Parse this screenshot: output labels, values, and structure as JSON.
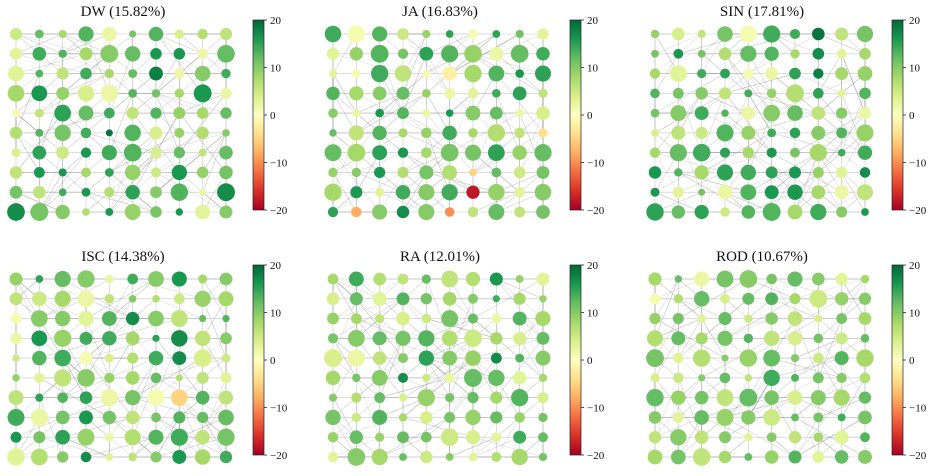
{
  "figure": {
    "colormap": "RdYlGn",
    "colormap_stops": [
      "#a50026",
      "#d73027",
      "#f46d43",
      "#fdae61",
      "#fee08b",
      "#ffffbf",
      "#d9ef8b",
      "#a6d96a",
      "#66bd63",
      "#1a9850",
      "#006837"
    ],
    "edge_color": "#888888",
    "grid": "10x10 nodes"
  },
  "chart_data": [
    {
      "type": "scatter",
      "title": "DW (15.82%)",
      "colorbar": {
        "range": [
          -20,
          20
        ],
        "ticks": [
          "20",
          "10",
          "0",
          "−10",
          "−20"
        ]
      },
      "node_values": [
        [
          5,
          12,
          8,
          13,
          2,
          11,
          13,
          4,
          7,
          6
        ],
        [
          3,
          14,
          13,
          8,
          10,
          12,
          16,
          16,
          2,
          12
        ],
        [
          3,
          13,
          6,
          14,
          8,
          12,
          18,
          2,
          10,
          14
        ],
        [
          8,
          16,
          9,
          4,
          2,
          13,
          11,
          8,
          16,
          2
        ],
        [
          1,
          6,
          15,
          12,
          14,
          6,
          13,
          9,
          8,
          12
        ],
        [
          7,
          13,
          11,
          14,
          19,
          13,
          4,
          9,
          7,
          10
        ],
        [
          4,
          15,
          5,
          16,
          14,
          13,
          4,
          12,
          6,
          12
        ],
        [
          6,
          16,
          16,
          8,
          15,
          9,
          5,
          16,
          9,
          11
        ],
        [
          11,
          6,
          14,
          16,
          7,
          15,
          10,
          13,
          2,
          17
        ],
        [
          17,
          11,
          10,
          7,
          16,
          9,
          11,
          16,
          3,
          10
        ]
      ]
    },
    {
      "type": "scatter",
      "title": "JA (16.83%)",
      "colorbar": {
        "range": [
          -20,
          20
        ],
        "ticks": [
          "20",
          "10",
          "0",
          "−10",
          "−20"
        ]
      },
      "node_values": [
        [
          14,
          1,
          13,
          5,
          9,
          15,
          1,
          15,
          11,
          3
        ],
        [
          3,
          9,
          13,
          11,
          15,
          13,
          9,
          2,
          12,
          14
        ],
        [
          3,
          1,
          14,
          6,
          1,
          -2,
          8,
          13,
          16,
          15
        ],
        [
          13,
          8,
          10,
          12,
          9,
          2,
          3,
          14,
          15,
          6
        ],
        [
          10,
          2,
          16,
          13,
          2,
          16,
          10,
          12,
          2,
          4
        ],
        [
          12,
          6,
          13,
          8,
          9,
          14,
          8,
          7,
          6,
          -4
        ],
        [
          12,
          8,
          15,
          16,
          8,
          11,
          11,
          15,
          9,
          12
        ],
        [
          9,
          10,
          16,
          7,
          11,
          7,
          -5,
          12,
          5,
          11
        ],
        [
          8,
          16,
          3,
          14,
          10,
          14,
          -18,
          9,
          3,
          10
        ],
        [
          15,
          -8,
          10,
          17,
          10,
          -10,
          6,
          12,
          6,
          11
        ]
      ]
    },
    {
      "type": "scatter",
      "title": "SIN (17.81%)",
      "colorbar": {
        "range": [
          -20,
          20
        ],
        "ticks": [
          "20",
          "10",
          "0",
          "−10",
          "−20"
        ]
      },
      "node_values": [
        [
          9,
          4,
          6,
          11,
          1,
          14,
          14,
          19,
          6,
          11
        ],
        [
          11,
          16,
          11,
          7,
          12,
          13,
          8,
          17,
          3,
          8
        ],
        [
          8,
          3,
          14,
          15,
          1,
          2,
          15,
          18,
          8,
          9
        ],
        [
          13,
          11,
          10,
          6,
          14,
          9,
          7,
          15,
          3,
          13
        ],
        [
          11,
          10,
          14,
          13,
          2,
          10,
          12,
          6,
          10,
          2
        ],
        [
          4,
          6,
          5,
          13,
          9,
          14,
          15,
          10,
          13,
          9
        ],
        [
          8,
          12,
          14,
          15,
          8,
          16,
          11,
          8,
          14,
          14
        ],
        [
          16,
          13,
          8,
          15,
          14,
          15,
          16,
          9,
          3,
          17
        ],
        [
          16,
          3,
          11,
          2,
          13,
          16,
          16,
          8,
          2,
          6
        ],
        [
          15,
          12,
          15,
          5,
          13,
          13,
          8,
          14,
          10,
          16
        ]
      ]
    },
    {
      "type": "scatter",
      "title": "ISC (14.38%)",
      "colorbar": {
        "range": [
          -20,
          20
        ],
        "ticks": [
          "20",
          "10",
          "0",
          "−10",
          "−20"
        ]
      },
      "node_values": [
        [
          9,
          15,
          12,
          10,
          2,
          14,
          10,
          16,
          8,
          10
        ],
        [
          6,
          5,
          8,
          2,
          6,
          10,
          7,
          5,
          9,
          8
        ],
        [
          1,
          10,
          10,
          3,
          13,
          17,
          10,
          6,
          12,
          13
        ],
        [
          2,
          16,
          9,
          14,
          14,
          8,
          15,
          17,
          6,
          10
        ],
        [
          5,
          13,
          14,
          1,
          4,
          7,
          14,
          17,
          4,
          5
        ],
        [
          9,
          3,
          6,
          10,
          9,
          8,
          12,
          7,
          6,
          3
        ],
        [
          6,
          15,
          13,
          15,
          2,
          11,
          1,
          -5,
          13,
          6
        ],
        [
          14,
          2,
          11,
          16,
          11,
          6,
          11,
          13,
          12,
          12
        ],
        [
          16,
          11,
          15,
          9,
          2,
          7,
          13,
          14,
          6,
          11
        ],
        [
          3,
          7,
          10,
          17,
          3,
          6,
          10,
          16,
          8,
          14
        ]
      ]
    },
    {
      "type": "scatter",
      "title": "RA (12.01%)",
      "colorbar": {
        "range": [
          -20,
          20
        ],
        "ticks": [
          "20",
          "10",
          "0",
          "−10",
          "−20"
        ]
      },
      "node_values": [
        [
          8,
          14,
          7,
          6,
          12,
          6,
          7,
          16,
          9,
          3
        ],
        [
          4,
          12,
          3,
          13,
          11,
          8,
          10,
          14,
          8,
          9
        ],
        [
          9,
          8,
          6,
          4,
          5,
          11,
          12,
          2,
          13,
          8
        ],
        [
          11,
          10,
          12,
          11,
          13,
          7,
          5,
          8,
          4,
          12
        ],
        [
          4,
          2,
          6,
          10,
          15,
          10,
          9,
          17,
          13,
          10
        ],
        [
          8,
          11,
          10,
          17,
          5,
          2,
          12,
          12,
          3,
          8
        ],
        [
          10,
          7,
          12,
          4,
          9,
          11,
          12,
          8,
          13,
          4
        ],
        [
          11,
          5,
          13,
          8,
          4,
          11,
          9,
          12,
          9,
          11
        ],
        [
          9,
          12,
          9,
          12,
          11,
          5,
          4,
          3,
          14,
          12
        ],
        [
          3,
          10,
          8,
          12,
          5,
          10,
          3,
          7,
          8,
          11
        ]
      ]
    },
    {
      "type": "scatter",
      "title": "ROD (10.67%)",
      "colorbar": {
        "range": [
          -20,
          20
        ],
        "ticks": [
          "20",
          "10",
          "0",
          "−10",
          "−20"
        ]
      },
      "node_values": [
        [
          8,
          12,
          2,
          11,
          10,
          11,
          12,
          10,
          3,
          8
        ],
        [
          1,
          7,
          12,
          4,
          12,
          13,
          8,
          5,
          9,
          10
        ],
        [
          9,
          11,
          3,
          12,
          5,
          10,
          6,
          4,
          11,
          8
        ],
        [
          7,
          12,
          8,
          11,
          13,
          6,
          4,
          11,
          5,
          12
        ],
        [
          11,
          3,
          7,
          10,
          9,
          12,
          10,
          5,
          13,
          8
        ],
        [
          4,
          5,
          10,
          12,
          6,
          14,
          13,
          11,
          10,
          7
        ],
        [
          12,
          9,
          11,
          6,
          12,
          11,
          4,
          10,
          8,
          12
        ],
        [
          10,
          3,
          12,
          9,
          10,
          5,
          12,
          11,
          14,
          11
        ],
        [
          6,
          10,
          6,
          10,
          3,
          10,
          6,
          8,
          3,
          13
        ],
        [
          8,
          11,
          6,
          8,
          12,
          9,
          13,
          3,
          12,
          10
        ]
      ]
    }
  ]
}
